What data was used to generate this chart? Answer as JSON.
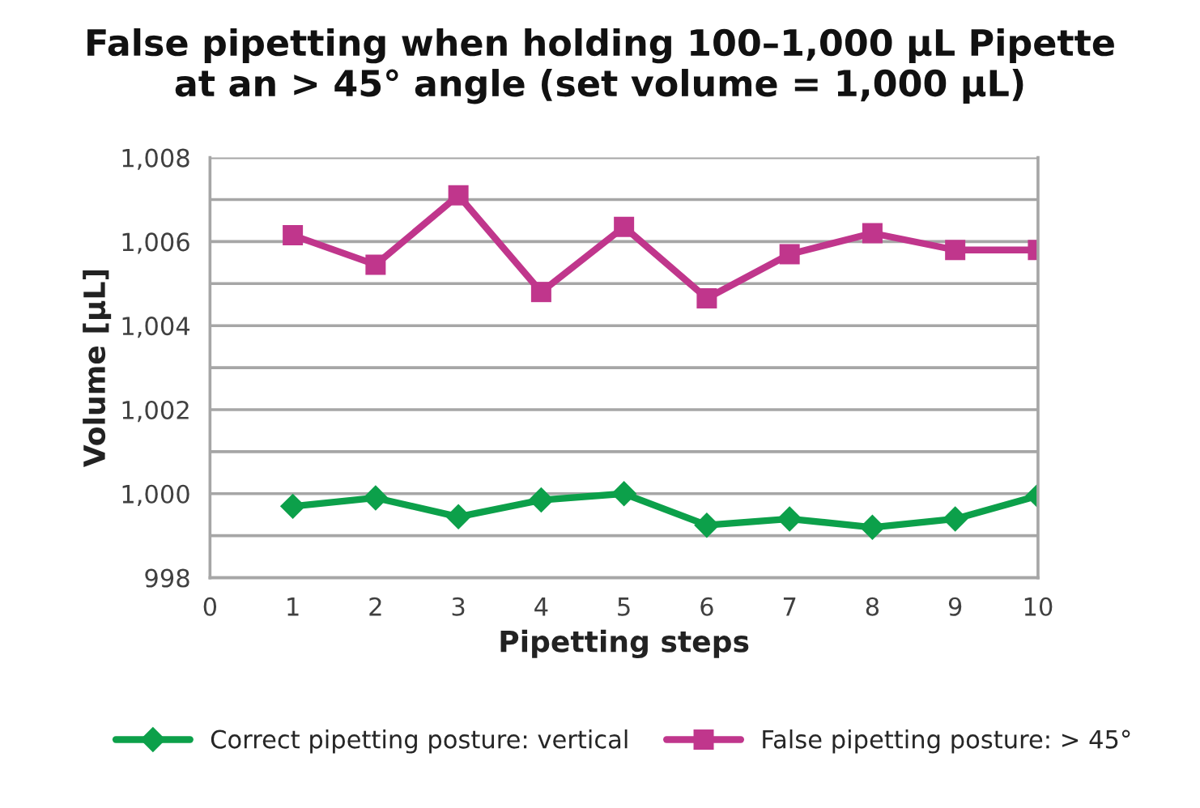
{
  "chart_data": {
    "type": "line",
    "title": "False pipetting when holding 100–1,000 µL Pipette\nat an > 45° angle (set volume = 1,000 µL)",
    "xlabel": "Pipetting steps",
    "ylabel": "Volume [µL]",
    "x": [
      1,
      2,
      3,
      4,
      5,
      6,
      7,
      8,
      9,
      10
    ],
    "series": [
      {
        "name": "Correct pipetting posture: vertical",
        "color": "#0ca04a",
        "marker": "diamond",
        "values": [
          999.7,
          999.9,
          999.45,
          999.85,
          1000.0,
          999.25,
          999.4,
          999.2,
          999.4,
          999.95
        ]
      },
      {
        "name": "False pipetting posture: > 45°",
        "color": "#c0368c",
        "marker": "square",
        "values": [
          1006.15,
          1005.45,
          1007.1,
          1004.8,
          1006.35,
          1004.65,
          1005.7,
          1006.2,
          1005.8,
          1005.8
        ]
      }
    ],
    "xlim": [
      0,
      10
    ],
    "xticks": [
      0,
      1,
      2,
      3,
      4,
      5,
      6,
      7,
      8,
      9,
      10
    ],
    "ylim": [
      998,
      1008
    ],
    "yticks": [
      {
        "value": 998,
        "label": "998"
      },
      {
        "value": 999,
        "label": null
      },
      {
        "value": 1000,
        "label": "1,000"
      },
      {
        "value": 1001,
        "label": null
      },
      {
        "value": 1002,
        "label": "1,002"
      },
      {
        "value": 1003,
        "label": null
      },
      {
        "value": 1004,
        "label": "1,004"
      },
      {
        "value": 1005,
        "label": null
      },
      {
        "value": 1006,
        "label": "1,006"
      },
      {
        "value": 1007,
        "label": null
      },
      {
        "value": 1008,
        "label": "1,008"
      }
    ],
    "grid": "y",
    "legend": "bottom",
    "line_style": "solid"
  }
}
